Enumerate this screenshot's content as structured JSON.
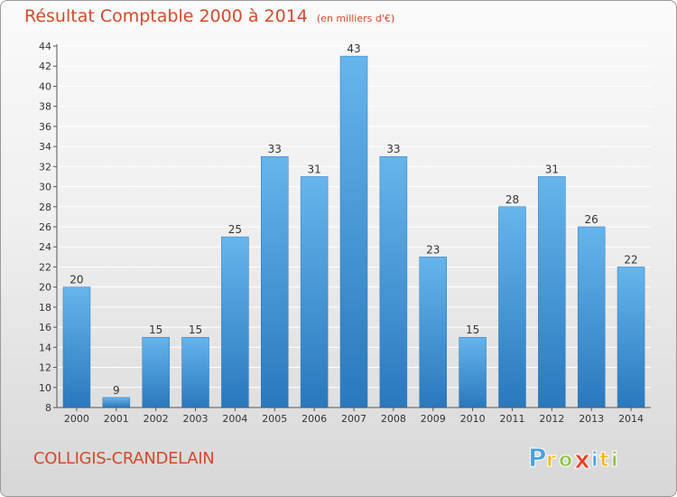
{
  "header": {
    "title": "Résultat Comptable 2000 à 2014",
    "unit": "(en milliers d'€)"
  },
  "footer": {
    "commune": "COLLIGIS-CRANDELAIN",
    "brand": "Proxiti"
  },
  "colors": {
    "accent": "#d24a2a",
    "bar": "#3f95d8",
    "bar_light": "#66b5ec",
    "bar_dark": "#2a78bd"
  },
  "chart_data": {
    "type": "bar",
    "title": "Résultat Comptable 2000 à 2014",
    "subtitle": "(en milliers d'€)",
    "xlabel": "",
    "ylabel": "",
    "categories": [
      "2000",
      "2001",
      "2002",
      "2003",
      "2004",
      "2005",
      "2006",
      "2007",
      "2008",
      "2009",
      "2010",
      "2011",
      "2012",
      "2013",
      "2014"
    ],
    "values": [
      20,
      9,
      15,
      15,
      25,
      33,
      31,
      43,
      33,
      23,
      15,
      28,
      31,
      26,
      22
    ],
    "ylim": [
      8,
      44
    ],
    "yticks": [
      8,
      10,
      12,
      14,
      16,
      18,
      20,
      22,
      24,
      26,
      28,
      30,
      32,
      34,
      36,
      38,
      40,
      42,
      44
    ],
    "grid": true,
    "data_labels": true
  }
}
